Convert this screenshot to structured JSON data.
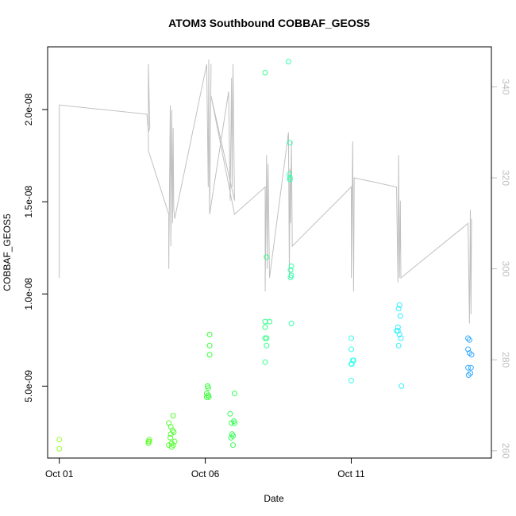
{
  "chart_data": {
    "type": "scatter",
    "title": "ATOM3 Southbound COBBAF_GEOS5",
    "xlabel": "Date",
    "ylabel": "COBBAF_GEOS5",
    "x_axis": {
      "unit": "days since Oct 01",
      "range": [
        -0.4,
        14.8
      ],
      "ticks": [
        {
          "x": 0,
          "label": "Oct 01"
        },
        {
          "x": 5,
          "label": "Oct 06"
        },
        {
          "x": 10,
          "label": "Oct 11"
        }
      ]
    },
    "y_axis_left": {
      "range": [
        1.1e-09,
        2.34e-08
      ],
      "ticks": [
        {
          "v": 5e-09,
          "label": "5.0e-09"
        },
        {
          "v": 1e-08,
          "label": "1.0e-08"
        },
        {
          "v": 1.5e-08,
          "label": "1.5e-08"
        },
        {
          "v": 2e-08,
          "label": "2.0e-08"
        }
      ]
    },
    "y_axis_right": {
      "range": [
        258.4,
        348.8
      ],
      "ticks": [
        {
          "v": 260,
          "label": "260"
        },
        {
          "v": 280,
          "label": "280"
        },
        {
          "v": 300,
          "label": "300"
        },
        {
          "v": 320,
          "label": "320"
        },
        {
          "v": 340,
          "label": "340"
        }
      ],
      "color": "#bebebe"
    },
    "grid": false,
    "colors": {
      "line": "#c0c0c0",
      "frame": "#000000"
    },
    "series": [
      {
        "kind": "points",
        "axis": "left",
        "color_by": "time",
        "points": [
          {
            "x": 0.0,
            "y": 2.1e-09,
            "c": "#99ff33"
          },
          {
            "x": 0.0,
            "y": 1.6e-09,
            "c": "#99ff33"
          },
          {
            "x": 3.05,
            "y": 1.9e-09,
            "c": "#66ff33"
          },
          {
            "x": 3.05,
            "y": 2e-09,
            "c": "#66ff33"
          },
          {
            "x": 3.08,
            "y": 2e-09,
            "c": "#66ff33"
          },
          {
            "x": 3.08,
            "y": 2.1e-09,
            "c": "#66ff33"
          },
          {
            "x": 3.75,
            "y": 1.8e-09,
            "c": "#55ff33"
          },
          {
            "x": 3.75,
            "y": 3e-09,
            "c": "#55ff33"
          },
          {
            "x": 3.8,
            "y": 2.2e-09,
            "c": "#55ff33"
          },
          {
            "x": 3.82,
            "y": 2.8e-09,
            "c": "#55ff33"
          },
          {
            "x": 3.82,
            "y": 2.4e-09,
            "c": "#55ff33"
          },
          {
            "x": 3.85,
            "y": 1.9e-09,
            "c": "#55ff33"
          },
          {
            "x": 3.85,
            "y": 1.7e-09,
            "c": "#55ff33"
          },
          {
            "x": 3.88,
            "y": 2.6e-09,
            "c": "#55ff33"
          },
          {
            "x": 3.9,
            "y": 1.8e-09,
            "c": "#55ff33"
          },
          {
            "x": 3.9,
            "y": 3.4e-09,
            "c": "#55ff33"
          },
          {
            "x": 3.92,
            "y": 2.5e-09,
            "c": "#55ff33"
          },
          {
            "x": 3.95,
            "y": 2e-09,
            "c": "#55ff33"
          },
          {
            "x": 5.05,
            "y": 4.4e-09,
            "c": "#33ff33"
          },
          {
            "x": 5.05,
            "y": 4.6e-09,
            "c": "#33ff33"
          },
          {
            "x": 5.08,
            "y": 5e-09,
            "c": "#33ff33"
          },
          {
            "x": 5.1,
            "y": 4.9e-09,
            "c": "#33ff33"
          },
          {
            "x": 5.1,
            "y": 4.5e-09,
            "c": "#33ff33"
          },
          {
            "x": 5.12,
            "y": 4.4e-09,
            "c": "#33ff33"
          },
          {
            "x": 5.15,
            "y": 6.7e-09,
            "c": "#33ff33"
          },
          {
            "x": 5.15,
            "y": 7.2e-09,
            "c": "#33ff33"
          },
          {
            "x": 5.15,
            "y": 7.8e-09,
            "c": "#33ff33"
          },
          {
            "x": 5.85,
            "y": 3.5e-09,
            "c": "#33ff55"
          },
          {
            "x": 5.88,
            "y": 2.2e-09,
            "c": "#33ff55"
          },
          {
            "x": 5.9,
            "y": 3e-09,
            "c": "#33ff55"
          },
          {
            "x": 5.92,
            "y": 2.4e-09,
            "c": "#33ff55"
          },
          {
            "x": 5.95,
            "y": 1.8e-09,
            "c": "#33ff55"
          },
          {
            "x": 5.95,
            "y": 2.3e-09,
            "c": "#33ff55"
          },
          {
            "x": 5.98,
            "y": 3.1e-09,
            "c": "#33ff55"
          },
          {
            "x": 6.0,
            "y": 4.6e-09,
            "c": "#33ff55"
          },
          {
            "x": 6.0,
            "y": 3e-09,
            "c": "#33ff55"
          },
          {
            "x": 7.05,
            "y": 2.2e-08,
            "c": "#33ff88"
          },
          {
            "x": 7.05,
            "y": 8.5e-09,
            "c": "#33ff88"
          },
          {
            "x": 7.05,
            "y": 8.2e-09,
            "c": "#33ff88"
          },
          {
            "x": 7.05,
            "y": 7.6e-09,
            "c": "#33ff88"
          },
          {
            "x": 7.05,
            "y": 6.3e-09,
            "c": "#33ff88"
          },
          {
            "x": 7.1,
            "y": 1.2e-08,
            "c": "#33ff88"
          },
          {
            "x": 7.1,
            "y": 7.6e-09,
            "c": "#33ff88"
          },
          {
            "x": 7.1,
            "y": 7.2e-09,
            "c": "#33ff88"
          },
          {
            "x": 7.2,
            "y": 8.5e-09,
            "c": "#33ff88"
          },
          {
            "x": 7.85,
            "y": 2.26e-08,
            "c": "#33ffaa"
          },
          {
            "x": 7.88,
            "y": 1.65e-08,
            "c": "#33ffaa"
          },
          {
            "x": 7.9,
            "y": 1.82e-08,
            "c": "#33ffaa"
          },
          {
            "x": 7.9,
            "y": 1.63e-08,
            "c": "#33ffaa"
          },
          {
            "x": 7.9,
            "y": 1.62e-08,
            "c": "#33ffaa"
          },
          {
            "x": 7.92,
            "y": 1.13e-08,
            "c": "#33ffaa"
          },
          {
            "x": 7.92,
            "y": 1.09e-08,
            "c": "#33ffaa"
          },
          {
            "x": 7.95,
            "y": 1.1e-08,
            "c": "#33ffaa"
          },
          {
            "x": 7.95,
            "y": 1.15e-08,
            "c": "#33ffaa"
          },
          {
            "x": 7.95,
            "y": 8.4e-09,
            "c": "#33ffaa"
          },
          {
            "x": 10.0,
            "y": 7.6e-09,
            "c": "#33ffee"
          },
          {
            "x": 10.0,
            "y": 7e-09,
            "c": "#33ffee"
          },
          {
            "x": 10.0,
            "y": 6.2e-09,
            "c": "#33ffee"
          },
          {
            "x": 10.0,
            "y": 5.3e-09,
            "c": "#33ffee"
          },
          {
            "x": 10.05,
            "y": 6.4e-09,
            "c": "#33ffee"
          },
          {
            "x": 10.08,
            "y": 6.4e-09,
            "c": "#33ffee"
          },
          {
            "x": 10.02,
            "y": 6.2e-09,
            "c": "#33ffee"
          },
          {
            "x": 11.55,
            "y": 8e-09,
            "c": "#33eeff"
          },
          {
            "x": 11.6,
            "y": 8.2e-09,
            "c": "#33eeff"
          },
          {
            "x": 11.62,
            "y": 9.2e-09,
            "c": "#33eeff"
          },
          {
            "x": 11.65,
            "y": 9.4e-09,
            "c": "#33eeff"
          },
          {
            "x": 11.68,
            "y": 8.8e-09,
            "c": "#33eeff"
          },
          {
            "x": 11.6,
            "y": 8e-09,
            "c": "#33eeff"
          },
          {
            "x": 11.65,
            "y": 7.8e-09,
            "c": "#33eeff"
          },
          {
            "x": 11.7,
            "y": 7.6e-09,
            "c": "#33eeff"
          },
          {
            "x": 11.62,
            "y": 7.2e-09,
            "c": "#33eeff"
          },
          {
            "x": 11.72,
            "y": 5e-09,
            "c": "#33eeff"
          },
          {
            "x": 14.0,
            "y": 7.6e-09,
            "c": "#33aaff"
          },
          {
            "x": 14.05,
            "y": 7.5e-09,
            "c": "#33aaff"
          },
          {
            "x": 14.0,
            "y": 7e-09,
            "c": "#33aaff"
          },
          {
            "x": 14.05,
            "y": 6.8e-09,
            "c": "#33aaff"
          },
          {
            "x": 14.12,
            "y": 6.7e-09,
            "c": "#33aaff"
          },
          {
            "x": 14.0,
            "y": 6e-09,
            "c": "#33aaff"
          },
          {
            "x": 14.1,
            "y": 6e-09,
            "c": "#33aaff"
          },
          {
            "x": 14.02,
            "y": 5.6e-09,
            "c": "#33aaff"
          },
          {
            "x": 14.08,
            "y": 5.7e-09,
            "c": "#33aaff"
          }
        ]
      },
      {
        "kind": "line",
        "axis": "right",
        "color": "#c0c0c0",
        "points": [
          [
            0.0,
            298
          ],
          [
            0.0,
            336
          ],
          [
            3.0,
            334
          ],
          [
            3.05,
            330
          ],
          [
            3.1,
            331
          ],
          [
            3.05,
            345
          ],
          [
            3.05,
            330
          ],
          [
            3.05,
            326
          ],
          [
            3.75,
            312
          ],
          [
            3.75,
            300
          ],
          [
            3.8,
            336
          ],
          [
            3.82,
            305
          ],
          [
            3.85,
            335
          ],
          [
            3.88,
            310
          ],
          [
            3.9,
            331
          ],
          [
            3.92,
            313
          ],
          [
            3.95,
            311
          ],
          [
            5.05,
            345
          ],
          [
            5.1,
            318
          ],
          [
            5.12,
            346
          ],
          [
            5.15,
            312
          ],
          [
            5.2,
            345
          ],
          [
            5.15,
            312
          ],
          [
            5.8,
            339
          ],
          [
            5.85,
            315
          ],
          [
            5.9,
            342
          ],
          [
            5.92,
            318
          ],
          [
            5.95,
            345
          ],
          [
            6.0,
            315
          ],
          [
            5.2,
            338
          ],
          [
            6.0,
            312
          ],
          [
            7.05,
            318
          ],
          [
            7.05,
            295
          ],
          [
            7.1,
            325
          ],
          [
            7.12,
            300
          ],
          [
            7.15,
            323
          ],
          [
            7.2,
            298
          ],
          [
            7.85,
            330
          ],
          [
            7.88,
            298
          ],
          [
            7.9,
            322
          ],
          [
            7.92,
            310
          ],
          [
            7.95,
            328
          ],
          [
            7.98,
            305
          ],
          [
            10.0,
            318
          ],
          [
            10.0,
            298
          ],
          [
            10.05,
            328
          ],
          [
            10.08,
            295
          ],
          [
            10.1,
            320
          ],
          [
            11.55,
            318
          ],
          [
            11.6,
            297
          ],
          [
            11.62,
            325
          ],
          [
            11.65,
            298
          ],
          [
            11.68,
            315
          ],
          [
            11.7,
            298
          ],
          [
            14.0,
            310
          ],
          [
            14.05,
            288
          ],
          [
            14.08,
            313
          ],
          [
            14.1,
            290
          ],
          [
            14.12,
            311
          ]
        ]
      }
    ]
  }
}
